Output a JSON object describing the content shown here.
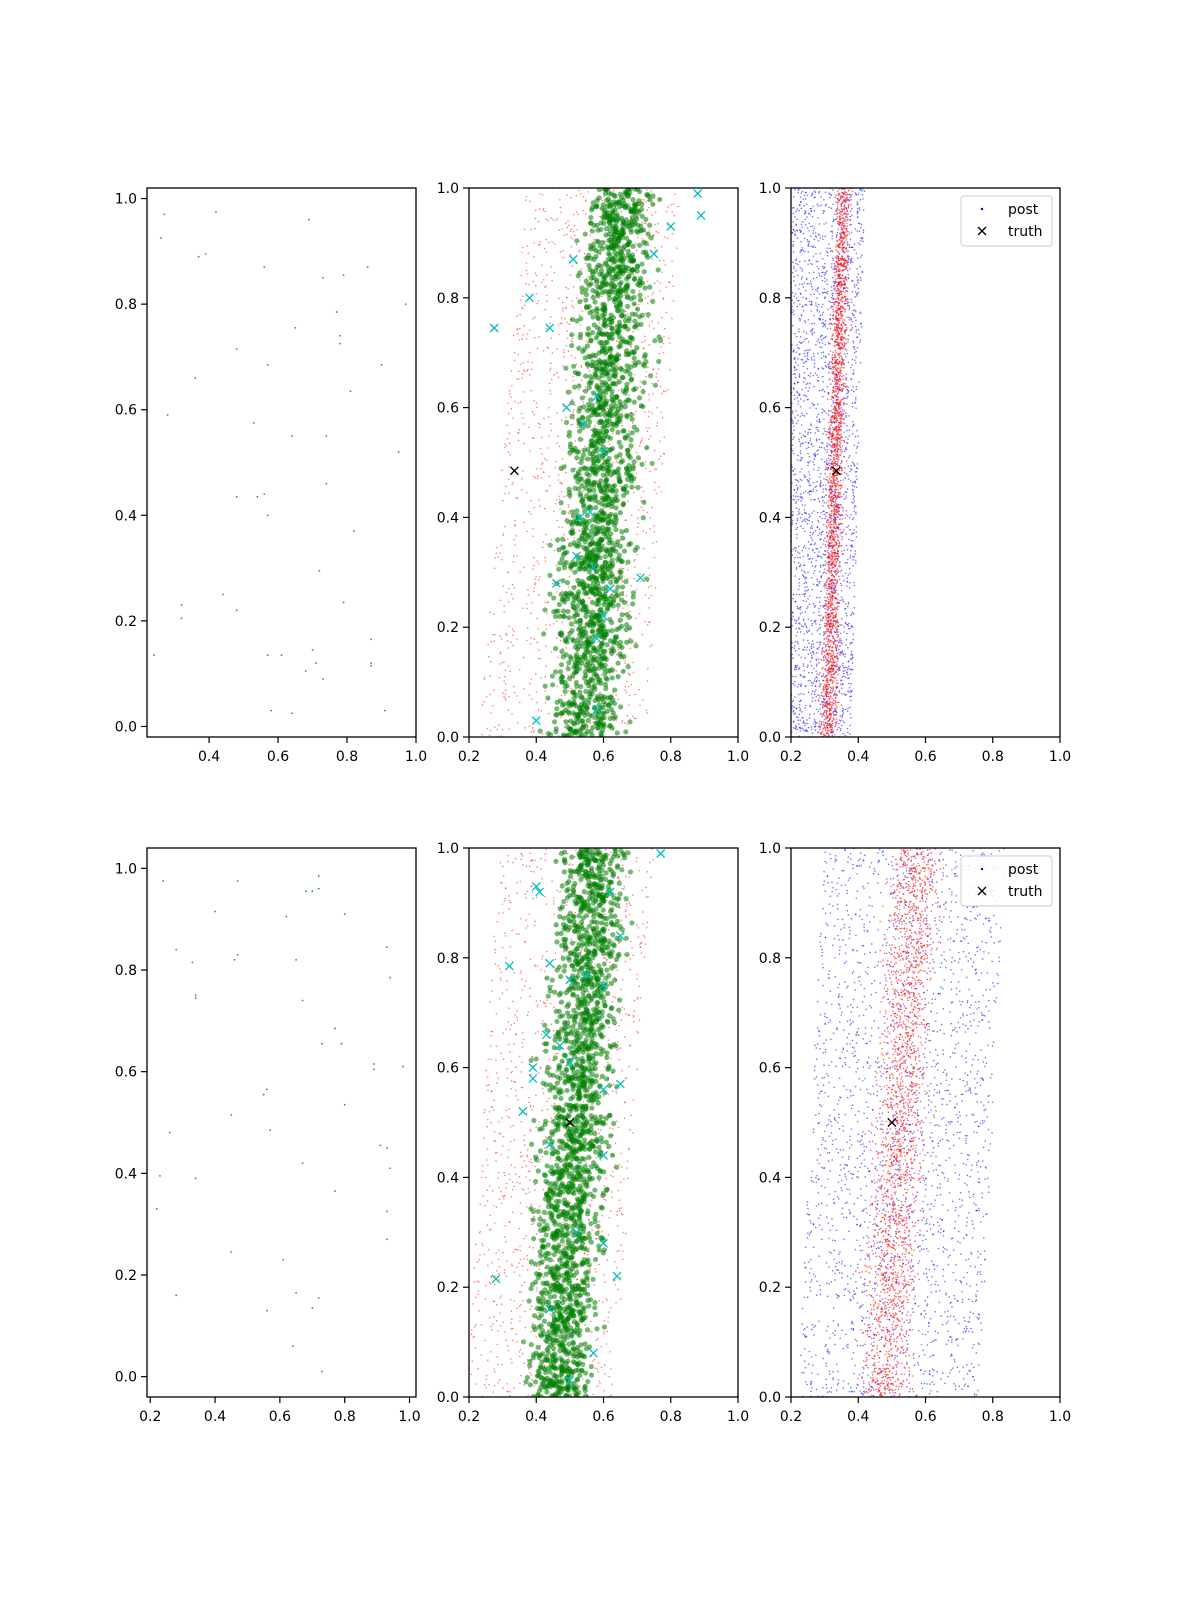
{
  "figure": {
    "rows": 2,
    "cols": 3
  },
  "colors": {
    "obs": "#2ca02c",
    "prior": "#ff0000",
    "post": "#0000ff",
    "truth": "#000000",
    "markers": "#00bfbf",
    "chain": "#008000"
  },
  "legend": {
    "post_label": "post",
    "truth_label": "truth",
    "location": "upper right"
  },
  "chart_data": [
    {
      "type": "scatter",
      "row": 0,
      "col": 0,
      "xlim": [
        0.22,
        1.0
      ],
      "ylim": [
        -0.02,
        1.02
      ],
      "xticks": [
        "0.4",
        "0.6",
        "0.8",
        "1.0"
      ],
      "yticks": [
        "0.0",
        "0.2",
        "0.4",
        "0.6",
        "0.8",
        "1.0"
      ],
      "xtick_values": [
        0.4,
        0.6,
        0.8,
        1.0
      ],
      "ytick_values": [
        0.0,
        0.2,
        0.4,
        0.6,
        0.8,
        1.0
      ],
      "points": [
        [
          0.27,
          0.97
        ],
        [
          0.42,
          0.975
        ],
        [
          0.69,
          0.96
        ],
        [
          0.26,
          0.925
        ],
        [
          0.37,
          0.89
        ],
        [
          0.39,
          0.895
        ],
        [
          0.56,
          0.87
        ],
        [
          0.73,
          0.85
        ],
        [
          0.79,
          0.855
        ],
        [
          0.86,
          0.87
        ],
        [
          0.97,
          0.8
        ],
        [
          0.77,
          0.785
        ],
        [
          0.65,
          0.755
        ],
        [
          0.78,
          0.74
        ],
        [
          0.78,
          0.725
        ],
        [
          0.48,
          0.715
        ],
        [
          0.57,
          0.685
        ],
        [
          0.9,
          0.685
        ],
        [
          0.36,
          0.66
        ],
        [
          0.81,
          0.635
        ],
        [
          0.28,
          0.59
        ],
        [
          0.53,
          0.575
        ],
        [
          0.64,
          0.55
        ],
        [
          0.74,
          0.55
        ],
        [
          0.95,
          0.52
        ],
        [
          0.74,
          0.46
        ],
        [
          0.56,
          0.44
        ],
        [
          0.54,
          0.435
        ],
        [
          0.48,
          0.435
        ],
        [
          0.57,
          0.4
        ],
        [
          0.82,
          0.37
        ],
        [
          0.72,
          0.295
        ],
        [
          0.44,
          0.25
        ],
        [
          0.32,
          0.23
        ],
        [
          0.79,
          0.235
        ],
        [
          0.48,
          0.22
        ],
        [
          0.32,
          0.205
        ],
        [
          0.87,
          0.165
        ],
        [
          0.24,
          0.135
        ],
        [
          0.57,
          0.135
        ],
        [
          0.61,
          0.135
        ],
        [
          0.7,
          0.145
        ],
        [
          0.71,
          0.12
        ],
        [
          0.87,
          0.12
        ],
        [
          0.87,
          0.115
        ],
        [
          0.68,
          0.105
        ],
        [
          0.73,
          0.09
        ],
        [
          0.58,
          0.03
        ],
        [
          0.64,
          0.025
        ],
        [
          0.91,
          0.03
        ]
      ]
    },
    {
      "type": "scatter",
      "row": 0,
      "col": 1,
      "xlim": [
        0.2,
        1.0
      ],
      "ylim": [
        0.0,
        1.0
      ],
      "xticks": [
        "0.2",
        "0.4",
        "0.6",
        "0.8",
        "1.0"
      ],
      "yticks": [
        "0.0",
        "0.2",
        "0.4",
        "0.6",
        "0.8",
        "1.0"
      ],
      "xtick_values": [
        0.2,
        0.4,
        0.6,
        0.8,
        1.0
      ],
      "ytick_values": [
        0.0,
        0.2,
        0.4,
        0.6,
        0.8,
        1.0
      ],
      "cloud": {
        "x_low_bottom": 0.28,
        "x_high_bottom": 0.7,
        "x_low_top": 0.42,
        "x_high_top": 0.8
      },
      "truth": [
        0.335,
        0.485
      ],
      "markers": [
        [
          0.275,
          0.745
        ],
        [
          0.38,
          0.8
        ],
        [
          0.44,
          0.745
        ],
        [
          0.49,
          0.6
        ],
        [
          0.51,
          0.87
        ],
        [
          0.54,
          0.57
        ],
        [
          0.58,
          0.62
        ],
        [
          0.6,
          0.52
        ],
        [
          0.53,
          0.4
        ],
        [
          0.56,
          0.41
        ],
        [
          0.46,
          0.28
        ],
        [
          0.52,
          0.33
        ],
        [
          0.57,
          0.31
        ],
        [
          0.62,
          0.27
        ],
        [
          0.71,
          0.29
        ],
        [
          0.6,
          0.22
        ],
        [
          0.58,
          0.18
        ],
        [
          0.4,
          0.03
        ],
        [
          0.58,
          0.05
        ],
        [
          0.88,
          0.99
        ],
        [
          0.89,
          0.95
        ],
        [
          0.8,
          0.93
        ],
        [
          0.75,
          0.88
        ]
      ]
    },
    {
      "type": "scatter",
      "row": 0,
      "col": 2,
      "xlim": [
        0.2,
        1.0
      ],
      "ylim": [
        0.0,
        1.0
      ],
      "xticks": [
        "0.2",
        "0.4",
        "0.6",
        "0.8",
        "1.0"
      ],
      "yticks": [
        "0.0",
        "0.2",
        "0.4",
        "0.6",
        "0.8",
        "1.0"
      ],
      "xtick_values": [
        0.2,
        0.4,
        0.6,
        0.8,
        1.0
      ],
      "ytick_values": [
        0.0,
        0.2,
        0.4,
        0.6,
        0.8,
        1.0
      ],
      "post_cloud": {
        "x_low_bottom": 0.2,
        "x_high_bottom": 0.38,
        "x_low_top": 0.2,
        "x_high_top": 0.42
      },
      "prior_cloud": {
        "x_low_bottom": 0.25,
        "x_high_bottom": 0.36,
        "x_low_top": 0.3,
        "x_high_top": 0.4
      },
      "truth": [
        0.335,
        0.485
      ],
      "legend": true
    },
    {
      "type": "scatter",
      "row": 1,
      "col": 0,
      "xlim": [
        0.19,
        1.02
      ],
      "ylim": [
        -0.04,
        1.04
      ],
      "xticks": [
        "0.2",
        "0.4",
        "0.6",
        "0.8",
        "1.0"
      ],
      "yticks": [
        "0.0",
        "0.2",
        "0.4",
        "0.6",
        "0.8",
        "1.0"
      ],
      "xtick_values": [
        0.2,
        0.4,
        0.6,
        0.8,
        1.0
      ],
      "ytick_values": [
        0.0,
        0.2,
        0.4,
        0.6,
        0.8,
        1.0
      ],
      "points": [
        [
          0.24,
          0.975
        ],
        [
          0.47,
          0.975
        ],
        [
          0.72,
          0.985
        ],
        [
          0.68,
          0.955
        ],
        [
          0.7,
          0.955
        ],
        [
          0.72,
          0.96
        ],
        [
          0.4,
          0.915
        ],
        [
          0.62,
          0.905
        ],
        [
          0.8,
          0.91
        ],
        [
          0.28,
          0.84
        ],
        [
          0.47,
          0.83
        ],
        [
          0.46,
          0.82
        ],
        [
          0.33,
          0.815
        ],
        [
          0.65,
          0.82
        ],
        [
          0.93,
          0.845
        ],
        [
          0.94,
          0.785
        ],
        [
          0.34,
          0.75
        ],
        [
          0.34,
          0.745
        ],
        [
          0.67,
          0.74
        ],
        [
          0.77,
          0.685
        ],
        [
          0.73,
          0.655
        ],
        [
          0.79,
          0.655
        ],
        [
          0.89,
          0.615
        ],
        [
          0.89,
          0.605
        ],
        [
          0.98,
          0.61
        ],
        [
          0.56,
          0.565
        ],
        [
          0.55,
          0.555
        ],
        [
          0.8,
          0.535
        ],
        [
          0.45,
          0.515
        ],
        [
          0.57,
          0.485
        ],
        [
          0.26,
          0.48
        ],
        [
          0.91,
          0.455
        ],
        [
          0.93,
          0.45
        ],
        [
          0.67,
          0.42
        ],
        [
          0.94,
          0.41
        ],
        [
          0.23,
          0.395
        ],
        [
          0.34,
          0.39
        ],
        [
          0.77,
          0.365
        ],
        [
          0.22,
          0.33
        ],
        [
          0.93,
          0.325
        ],
        [
          0.93,
          0.27
        ],
        [
          0.45,
          0.245
        ],
        [
          0.61,
          0.23
        ],
        [
          0.28,
          0.16
        ],
        [
          0.65,
          0.165
        ],
        [
          0.72,
          0.155
        ],
        [
          0.56,
          0.13
        ],
        [
          0.7,
          0.135
        ],
        [
          0.64,
          0.06
        ],
        [
          0.73,
          0.01
        ]
      ]
    },
    {
      "type": "scatter",
      "row": 1,
      "col": 1,
      "xlim": [
        0.2,
        1.0
      ],
      "ylim": [
        0.0,
        1.0
      ],
      "xticks": [
        "0.2",
        "0.4",
        "0.6",
        "0.8",
        "1.0"
      ],
      "yticks": [
        "0.0",
        "0.2",
        "0.4",
        "0.6",
        "0.8",
        "1.0"
      ],
      "xtick_values": [
        0.2,
        0.4,
        0.6,
        0.8,
        1.0
      ],
      "ytick_values": [
        0.0,
        0.2,
        0.4,
        0.6,
        0.8,
        1.0
      ],
      "cloud": {
        "x_low_bottom": 0.24,
        "x_high_bottom": 0.6,
        "x_low_top": 0.34,
        "x_high_top": 0.72
      },
      "truth": [
        0.5,
        0.5
      ],
      "markers": [
        [
          0.32,
          0.785
        ],
        [
          0.4,
          0.93
        ],
        [
          0.41,
          0.92
        ],
        [
          0.44,
          0.79
        ],
        [
          0.5,
          0.76
        ],
        [
          0.55,
          0.77
        ],
        [
          0.6,
          0.75
        ],
        [
          0.62,
          0.92
        ],
        [
          0.65,
          0.84
        ],
        [
          0.77,
          0.99
        ],
        [
          0.39,
          0.58
        ],
        [
          0.39,
          0.6
        ],
        [
          0.43,
          0.66
        ],
        [
          0.47,
          0.64
        ],
        [
          0.5,
          0.61
        ],
        [
          0.36,
          0.52
        ],
        [
          0.44,
          0.46
        ],
        [
          0.6,
          0.56
        ],
        [
          0.65,
          0.57
        ],
        [
          0.44,
          0.16
        ],
        [
          0.28,
          0.215
        ],
        [
          0.52,
          0.3
        ],
        [
          0.6,
          0.28
        ],
        [
          0.6,
          0.44
        ],
        [
          0.64,
          0.22
        ],
        [
          0.5,
          0.03
        ],
        [
          0.57,
          0.08
        ]
      ]
    },
    {
      "type": "scatter",
      "row": 1,
      "col": 2,
      "xlim": [
        0.2,
        1.0
      ],
      "ylim": [
        0.0,
        1.0
      ],
      "xticks": [
        "0.2",
        "0.4",
        "0.6",
        "0.8",
        "1.0"
      ],
      "yticks": [
        "0.0",
        "0.2",
        "0.4",
        "0.6",
        "0.8",
        "1.0"
      ],
      "xtick_values": [
        0.2,
        0.4,
        0.6,
        0.8,
        1.0
      ],
      "ytick_values": [
        0.0,
        0.2,
        0.4,
        0.6,
        0.8,
        1.0
      ],
      "post_cloud": {
        "x_low_bottom": 0.22,
        "x_high_bottom": 0.76,
        "x_low_top": 0.3,
        "x_high_top": 0.84
      },
      "prior_cloud": {
        "x_low_bottom": 0.3,
        "x_high_bottom": 0.62,
        "x_low_top": 0.4,
        "x_high_top": 0.72
      },
      "truth": [
        0.5,
        0.5
      ],
      "legend": true
    }
  ]
}
